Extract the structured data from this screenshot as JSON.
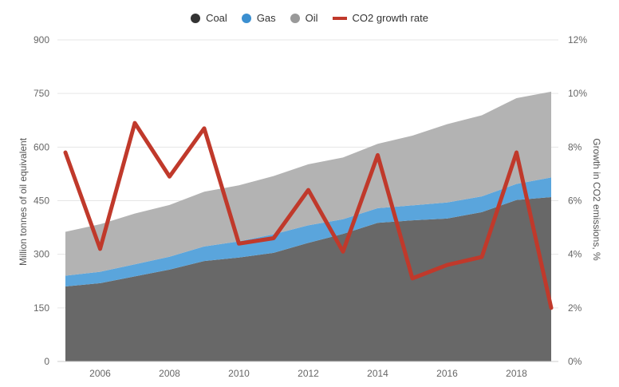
{
  "legend": [
    {
      "label": "Coal",
      "type": "dot",
      "color": "#333333"
    },
    {
      "label": "Gas",
      "type": "dot",
      "color": "#3b8fd0"
    },
    {
      "label": "Oil",
      "type": "dot",
      "color": "#999999"
    },
    {
      "label": "CO2 growth rate",
      "type": "line",
      "color": "#c0392b"
    }
  ],
  "chart_data": {
    "type": "area",
    "x": [
      2005,
      2006,
      2007,
      2008,
      2009,
      2010,
      2011,
      2012,
      2013,
      2014,
      2015,
      2016,
      2017,
      2018,
      2019
    ],
    "series": [
      {
        "name": "Coal",
        "color": "#686868",
        "values": [
          210,
          219,
          238,
          257,
          281,
          291,
          304,
          332,
          357,
          388,
          395,
          400,
          418,
          452,
          460
        ]
      },
      {
        "name": "Gas",
        "color": "#5aa5dc",
        "values": [
          30,
          32,
          34,
          36,
          41,
          45,
          52,
          49,
          41,
          41,
          42,
          45,
          44,
          45,
          55
        ]
      },
      {
        "name": "Oil",
        "color": "#b3b3b3",
        "values": [
          123,
          133,
          142,
          145,
          153,
          157,
          163,
          171,
          173,
          180,
          195,
          219,
          227,
          240,
          240
        ]
      },
      {
        "name": "CO2 growth rate",
        "type": "line",
        "axis": "right",
        "color": "#c0392b",
        "values": [
          7.8,
          4.2,
          8.9,
          6.9,
          8.7,
          4.4,
          4.6,
          6.4,
          4.1,
          7.7,
          3.1,
          3.6,
          3.9,
          7.8,
          2.0
        ]
      }
    ],
    "ylabel": "Million tonnes of oil equivalent",
    "ylabel_right": "Growth in CO2 emissions, %",
    "ylim": [
      0,
      900
    ],
    "yticks": [
      "0",
      "150",
      "300",
      "450",
      "600",
      "750",
      "900"
    ],
    "ylim_right": [
      0,
      12
    ],
    "yticks_right": [
      "0%",
      "2%",
      "4%",
      "6%",
      "8%",
      "10%",
      "12%"
    ],
    "xticks": [
      "2006",
      "2008",
      "2010",
      "2012",
      "2014",
      "2016",
      "2018"
    ],
    "grid": true,
    "legend_position": "top-center"
  }
}
